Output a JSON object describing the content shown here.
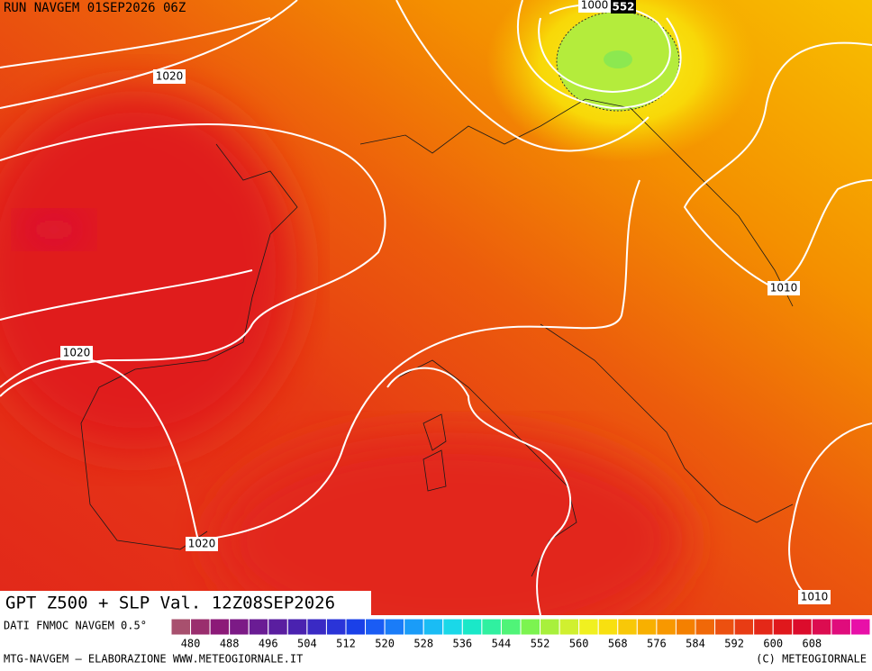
{
  "header": {
    "run": "RUN NAVGEM 01SEP2026 06Z"
  },
  "isobar_labels": [
    "1020",
    "1020",
    "1020",
    "1010",
    "1010",
    "1000"
  ],
  "height_label": "552",
  "map_title": "GPT Z500 + SLP Val. 12Z08SEP2026",
  "colorbar": {
    "caption": "DATI FNMOC NAVGEM 0.5°",
    "ticks": [
      480,
      488,
      496,
      504,
      512,
      520,
      528,
      536,
      544,
      552,
      560,
      568,
      576,
      584,
      592,
      600,
      608
    ],
    "colors": [
      "#a8506e",
      "#9a2e6e",
      "#8c1a78",
      "#7c1a86",
      "#6a1c94",
      "#5a1ea0",
      "#4a22b0",
      "#3a2ac4",
      "#2a34d8",
      "#1a40e8",
      "#1a5cf4",
      "#1a7cf8",
      "#1a9cf8",
      "#1abcf4",
      "#1ad8e8",
      "#1ae8c8",
      "#30f0a0",
      "#50f478",
      "#7cf450",
      "#a8f03c",
      "#d0f030",
      "#f0f020",
      "#f8e010",
      "#f8c808",
      "#f8b000",
      "#f89800",
      "#f48000",
      "#f06808",
      "#ec5010",
      "#e83c14",
      "#e42818",
      "#e0181c",
      "#dc0c2c",
      "#dc0c50",
      "#e00c7c",
      "#e810a8"
    ]
  },
  "footer": {
    "left": "MTG-NAVGEM – ELABORAZIONE WWW.METEOGIORNALE.IT",
    "right": "(C) METEOGIORNALE"
  }
}
